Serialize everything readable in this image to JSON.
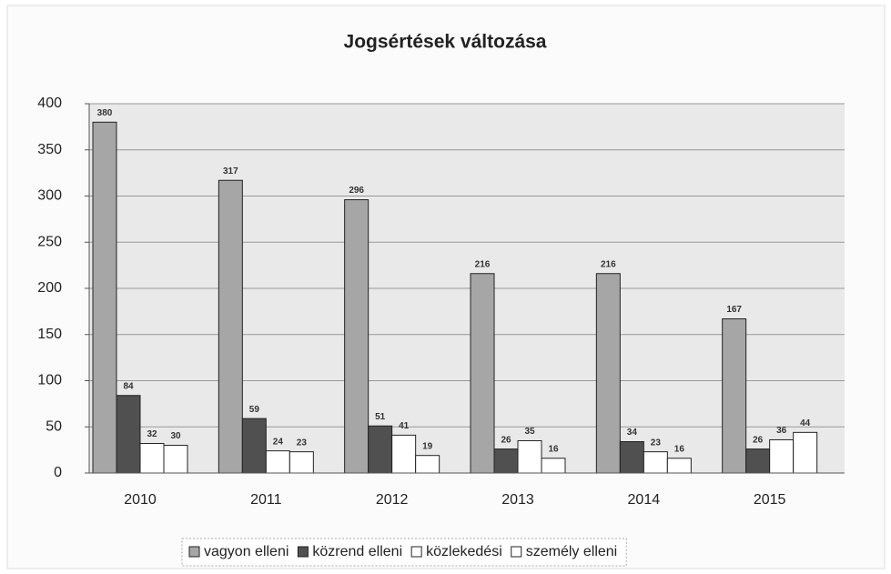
{
  "chart_data": {
    "type": "bar",
    "title": "Jogsértések változása",
    "categories": [
      "2010",
      "2011",
      "2012",
      "2013",
      "2014",
      "2015"
    ],
    "series": [
      {
        "name": "vagyon elleni",
        "color": "#a6a6a6",
        "values": [
          380,
          317,
          296,
          216,
          216,
          167
        ]
      },
      {
        "name": "közrend elleni",
        "color": "#505050",
        "values": [
          84,
          59,
          51,
          26,
          34,
          26
        ]
      },
      {
        "name": "közlekedési",
        "color": "#ffffff",
        "values": [
          32,
          24,
          41,
          35,
          23,
          36
        ]
      },
      {
        "name": "személy elleni",
        "color": "#ffffff",
        "values": [
          30,
          23,
          19,
          16,
          16,
          44
        ]
      }
    ],
    "ylim": [
      0,
      400
    ],
    "yticks": [
      0,
      50,
      100,
      150,
      200,
      250,
      300,
      350,
      400
    ],
    "grid": true,
    "legend": "bottom"
  }
}
